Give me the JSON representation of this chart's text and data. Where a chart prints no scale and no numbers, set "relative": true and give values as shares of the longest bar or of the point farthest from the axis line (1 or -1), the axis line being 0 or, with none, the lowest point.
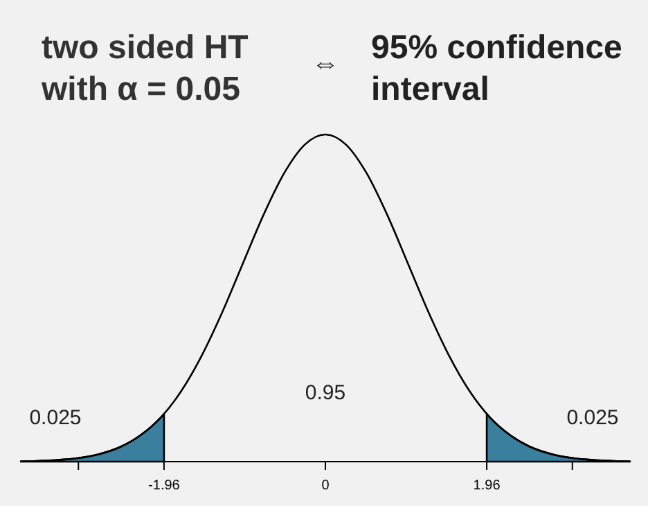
{
  "chart_data": {
    "type": "line",
    "relative": true,
    "title": "two sided HT\nwith α = 0.05",
    "annotations": [
      "⇔",
      "95% confidence\ninterval",
      "0.025",
      "0.95",
      "0.025"
    ],
    "xlim": [
      -3.7,
      3.7
    ],
    "xticks": [
      {
        "value": -3,
        "label": null
      },
      -1.96,
      0,
      1.96,
      {
        "value": 3,
        "label": null
      }
    ],
    "grid": false,
    "line_style": "solid",
    "series": [
      {
        "color": "#000000",
        "x": [
          -3.7,
          -3.5,
          -3.25,
          -3,
          -2.75,
          -2.5,
          -2.25,
          -2,
          -1.75,
          -1.5,
          -1.25,
          -1,
          -0.75,
          -0.5,
          -0.25,
          0,
          0.25,
          0.5,
          0.75,
          1,
          1.25,
          1.5,
          1.75,
          2,
          2.25,
          2.5,
          2.75,
          3,
          3.25,
          3.5,
          3.7
        ],
        "values": [
          0.001,
          0.002,
          0.005,
          0.011,
          0.023,
          0.044,
          0.08,
          0.135,
          0.216,
          0.325,
          0.458,
          0.607,
          0.755,
          0.882,
          0.969,
          1,
          0.969,
          0.882,
          0.755,
          0.607,
          0.458,
          0.325,
          0.216,
          0.135,
          0.08,
          0.044,
          0.023,
          0.011,
          0.005,
          0.002,
          0.001
        ]
      },
      {
        "type": "area",
        "color": "#3a7f9e",
        "x": [
          -3.7,
          -3.5,
          -3.25,
          -3,
          -2.75,
          -2.5,
          -2.25,
          -2,
          -1.96
        ],
        "values": [
          0.001,
          0.002,
          0.005,
          0.011,
          0.023,
          0.044,
          0.08,
          0.135,
          0.146
        ]
      },
      {
        "type": "area",
        "color": "#3a7f9e",
        "x": [
          1.96,
          2,
          2.25,
          2.5,
          2.75,
          3,
          3.25,
          3.5,
          3.7
        ],
        "values": [
          0.146,
          0.135,
          0.08,
          0.044,
          0.023,
          0.011,
          0.005,
          0.002,
          0.001
        ]
      }
    ]
  }
}
